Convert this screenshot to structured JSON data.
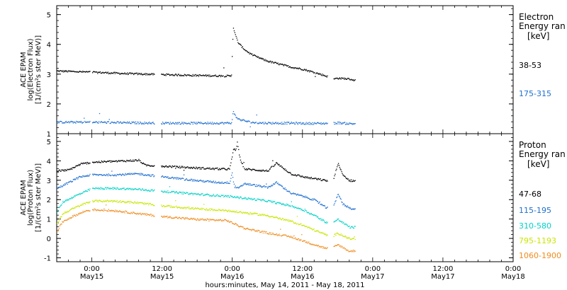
{
  "chart_data": [
    {
      "type": "scatter",
      "instrument_label": "ACE EPAM",
      "ylabel": "log(Electron Flux)",
      "yunits": "[1/(cm²s ster MeV)]",
      "legend_title": "Electron",
      "legend_subtitle": "Energy ran",
      "legend_units": "[keV]",
      "legend_placement": "right",
      "ylim": [
        1,
        5.3
      ],
      "yticks": [
        "1",
        "2",
        "3",
        "4",
        "5"
      ],
      "x_start": "2011-05-14T18:00",
      "x_end": "2011-05-18T00:00",
      "data_gaps_hours": [
        [
          -0.3,
          0.0
        ],
        [
          10.7,
          11.8
        ],
        [
          40.3,
          41.2
        ]
      ],
      "series": [
        {
          "name": "38-53",
          "color": "#000000",
          "x": [
            -6,
            0,
            6,
            12,
            18,
            23.8,
            24.1,
            24.5,
            25,
            26,
            27,
            28,
            30,
            32,
            34,
            36,
            38,
            40,
            41.2,
            42,
            44,
            45
          ],
          "y": [
            3.12,
            3.08,
            3.03,
            3.0,
            2.97,
            2.95,
            4.6,
            4.3,
            4.05,
            3.85,
            3.7,
            3.6,
            3.45,
            3.35,
            3.25,
            3.18,
            3.07,
            2.95,
            2.85,
            2.88,
            2.85,
            2.8
          ]
        },
        {
          "name": "175-315",
          "color": "#1e6fd0",
          "x": [
            -6,
            0,
            6,
            12,
            18,
            23.8,
            24.1,
            24.5,
            25,
            26,
            27,
            28,
            30,
            32,
            34,
            36,
            38,
            40,
            41.2,
            42,
            44,
            45
          ],
          "y": [
            1.4,
            1.4,
            1.38,
            1.37,
            1.37,
            1.37,
            1.75,
            1.6,
            1.5,
            1.45,
            1.4,
            1.38,
            1.37,
            1.37,
            1.37,
            1.36,
            1.36,
            1.36,
            1.36,
            1.38,
            1.35,
            1.35
          ]
        }
      ]
    },
    {
      "type": "scatter",
      "instrument_label": "ACE EPAM",
      "ylabel": "log(Proton Flux)",
      "yunits": "[1/(cm²s ster MeV)]",
      "legend_title": "Proton",
      "legend_subtitle": "Energy ran",
      "legend_units": "[keV]",
      "legend_placement": "right",
      "ylim": [
        -1.2,
        5.4
      ],
      "yticks": [
        "-1",
        "0",
        "1",
        "2",
        "3",
        "4",
        "5"
      ],
      "x_start": "2011-05-14T18:00",
      "x_end": "2011-05-18T00:00",
      "data_gaps_hours": [
        [
          -0.3,
          0.0
        ],
        [
          10.7,
          11.8
        ],
        [
          40.3,
          41.2
        ]
      ],
      "series": [
        {
          "name": "47-68",
          "color": "#000000",
          "x": [
            -6,
            -4,
            -2,
            0,
            4,
            8,
            9,
            12,
            18,
            22,
            23.5,
            23.9,
            24.2,
            24.5,
            24.8,
            25.2,
            26,
            30,
            31.5,
            34,
            36,
            38,
            40,
            41.2,
            42,
            42.8,
            44,
            45
          ],
          "y": [
            3.5,
            3.55,
            3.85,
            3.95,
            4.0,
            4.05,
            3.8,
            3.75,
            3.65,
            3.6,
            3.6,
            4.2,
            4.7,
            4.5,
            5.0,
            4.2,
            3.6,
            3.5,
            3.9,
            3.35,
            3.2,
            3.1,
            3.0,
            3.0,
            3.9,
            3.3,
            3.0,
            3.0
          ]
        },
        {
          "name": "115-195",
          "color": "#1e6fd0",
          "x": [
            -6,
            -4,
            -2,
            0,
            4,
            8,
            12,
            18,
            22,
            23.5,
            23.9,
            24.3,
            25,
            26,
            30,
            31.5,
            34,
            36,
            38,
            40,
            41.2,
            42,
            42.8,
            44,
            45
          ],
          "y": [
            2.6,
            2.9,
            3.2,
            3.3,
            3.3,
            3.35,
            3.2,
            3.0,
            2.9,
            2.9,
            3.4,
            2.7,
            2.6,
            2.85,
            2.65,
            2.9,
            2.35,
            2.2,
            2.0,
            1.6,
            1.6,
            2.35,
            1.8,
            1.6,
            1.5
          ]
        },
        {
          "name": "310-580",
          "color": "#00d2c8",
          "x": [
            -6,
            -5,
            -3,
            -1,
            0,
            4,
            8,
            12,
            18,
            23,
            26,
            30,
            34,
            36,
            38,
            40,
            41.2,
            42,
            44,
            45
          ],
          "y": [
            1.4,
            1.9,
            2.2,
            2.45,
            2.6,
            2.6,
            2.55,
            2.45,
            2.3,
            2.2,
            2.1,
            1.95,
            1.7,
            1.5,
            1.2,
            0.85,
            0.85,
            1.0,
            0.6,
            0.6
          ]
        },
        {
          "name": "795-1193",
          "color": "#c8e600",
          "x": [
            -6,
            -5,
            -3,
            -1,
            0,
            4,
            8,
            12,
            18,
            23,
            26,
            30,
            34,
            36,
            38,
            40,
            41.2,
            42,
            44,
            45
          ],
          "y": [
            0.8,
            1.3,
            1.6,
            1.85,
            1.95,
            1.95,
            1.85,
            1.7,
            1.55,
            1.45,
            1.35,
            1.2,
            0.9,
            0.7,
            0.45,
            0.2,
            0.15,
            0.3,
            0.0,
            0.0
          ]
        },
        {
          "name": "1060-1900",
          "color": "#f08c1e",
          "x": [
            -6,
            -5,
            -3,
            -1,
            0,
            4,
            8,
            12,
            18,
            23,
            26,
            30,
            34,
            36,
            38,
            40,
            41.2,
            42,
            44,
            45
          ],
          "y": [
            0.4,
            0.9,
            1.2,
            1.45,
            1.5,
            1.45,
            1.3,
            1.15,
            1.0,
            0.95,
            0.55,
            0.3,
            0.1,
            -0.1,
            -0.3,
            -0.5,
            -0.45,
            -0.3,
            -0.65,
            -0.6
          ]
        }
      ]
    }
  ],
  "x_axis": {
    "tick_labels": [
      {
        "time": "0:00",
        "date": "May15"
      },
      {
        "time": "12:00",
        "date": "May15"
      },
      {
        "time": "0:00",
        "date": "May16"
      },
      {
        "time": "12:00",
        "date": "May16"
      },
      {
        "time": "0:00",
        "date": "May17"
      },
      {
        "time": "12:00",
        "date": "May17"
      },
      {
        "time": "0:00",
        "date": "May18"
      }
    ],
    "tick_hours": [
      0,
      12,
      24,
      36,
      48,
      60,
      72
    ],
    "xlabel": "hours:minutes, May 14, 2011 - May 18, 2011"
  }
}
